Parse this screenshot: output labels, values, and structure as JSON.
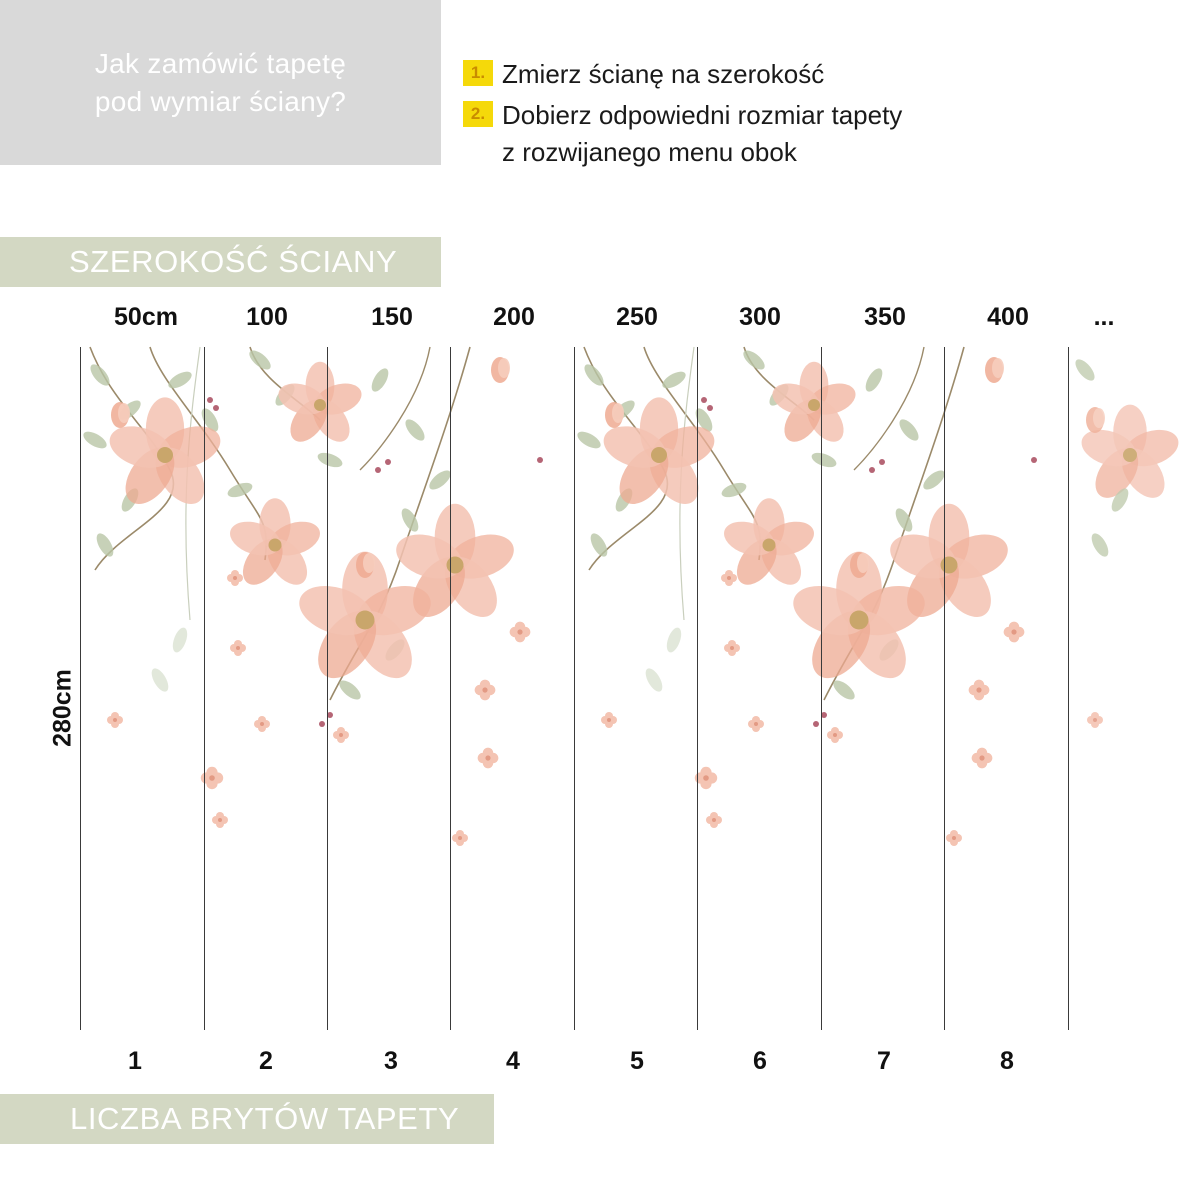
{
  "header": {
    "question_line1": "Jak zamówić tapetę",
    "question_line2": "pod wymiar ściany?"
  },
  "steps": [
    {
      "number": "1.",
      "lines": [
        "Zmierz ścianę na szerokość"
      ]
    },
    {
      "number": "2.",
      "lines": [
        "Dobierz odpowiedni rozmiar tapety",
        "z rozwijanego menu obok"
      ]
    }
  ],
  "width_band": {
    "label": "SZEROKOŚĆ ŚCIANY"
  },
  "width_labels": [
    "50cm",
    "100",
    "150",
    "200",
    "250",
    "300",
    "350",
    "400",
    "..."
  ],
  "height_label": "280cm",
  "panel_numbers": [
    "1",
    "2",
    "3",
    "4",
    "5",
    "6",
    "7",
    "8"
  ],
  "count_band": {
    "label": "LICZBA BRYTÓW TAPETY"
  },
  "colors": {
    "question_bg": "#d9d9d9",
    "band_bg": "#d3d8c3",
    "step_badge": "#f5d90a",
    "flower": "#f2b8a4",
    "leaf": "#b7c4a4"
  }
}
